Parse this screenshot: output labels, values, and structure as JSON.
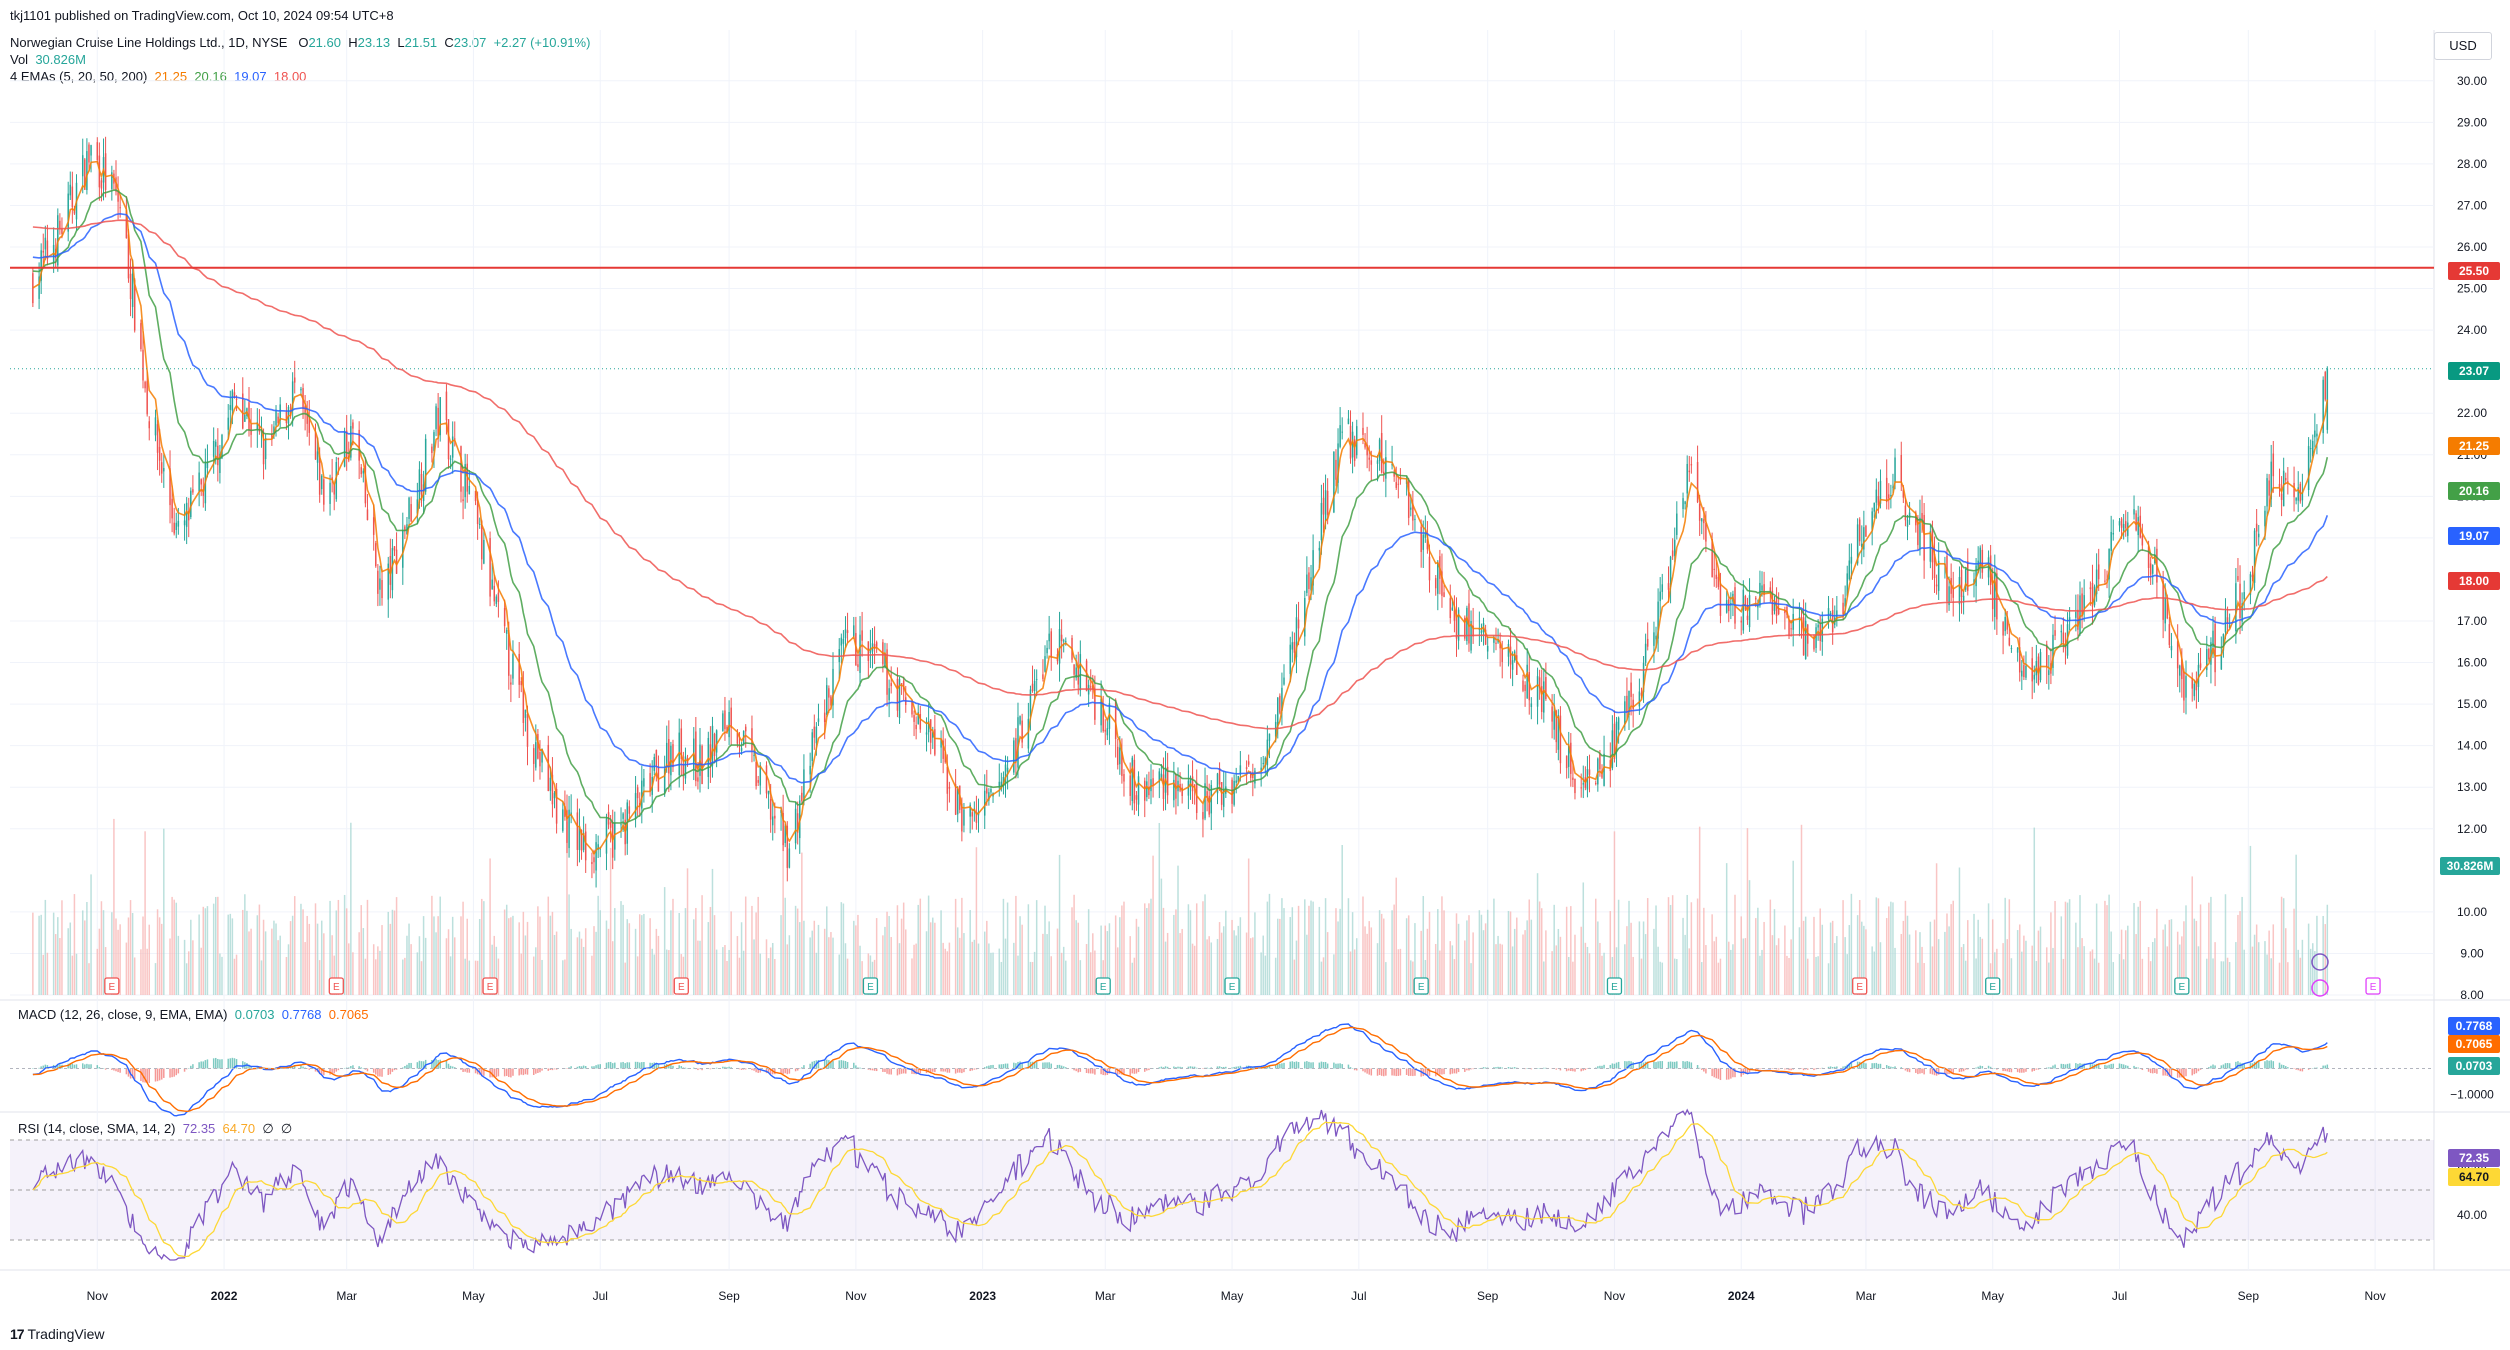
{
  "header": {
    "published": "tkj1101 published on TradingView.com, Oct 10, 2024 09:54 UTC+8",
    "symbol": "Norwegian Cruise Line Holdings Ltd., 1D, NYSE",
    "ohlc": {
      "o_label": "O",
      "o": "21.60",
      "h_label": "H",
      "h": "23.13",
      "l_label": "L",
      "l": "21.51",
      "c_label": "C",
      "c": "23.07",
      "chg": "+2.27 (+10.91%)"
    },
    "vol_label": "Vol",
    "vol_value": "30.826M",
    "ema_label": "4 EMAs (5, 20, 50, 200)",
    "ema_values": [
      "21.25",
      "20.16",
      "19.07",
      "18.00"
    ],
    "currency": "USD"
  },
  "colors": {
    "up": "#26a69a",
    "down": "#ef5350",
    "ema5": "#f57c00",
    "ema20": "#43a047",
    "ema50": "#2962ff",
    "ema200": "#ef5350",
    "hline": "#e53935",
    "macd": "#2962ff",
    "signal": "#ff6d00",
    "rsi": "#7e57c2",
    "rsi_ma": "#fdd835"
  },
  "price_axis": {
    "ticks": [
      "30.00",
      "29.00",
      "28.00",
      "27.00",
      "26.00",
      "25.00",
      "24.00",
      "22.00",
      "21.00",
      "20.00",
      "19.00",
      "17.00",
      "16.00",
      "15.00",
      "14.00",
      "13.00",
      "12.00",
      "10.00",
      "9.00",
      "8.00"
    ]
  },
  "time_axis": {
    "labels": [
      "Nov",
      "2022",
      "Mar",
      "May",
      "Jul",
      "Sep",
      "Nov",
      "2023",
      "Mar",
      "May",
      "Jul",
      "Sep",
      "Nov",
      "2024",
      "Mar",
      "May",
      "Jul",
      "Sep",
      "Nov"
    ]
  },
  "price_tags": {
    "resistance": "25.50",
    "last": "23.07",
    "ema5": "21.25",
    "ema20": "20.16",
    "ema50": "19.07",
    "ema200": "18.00",
    "volume": "30.826M"
  },
  "macd": {
    "label": "MACD (12, 26, close, 9, EMA, EMA)",
    "values": [
      "0.0703",
      "0.7768",
      "0.7065"
    ],
    "axis_label": "−1.0000"
  },
  "rsi": {
    "label": "RSI (14, close, SMA, 14, 2)",
    "values": [
      "72.35",
      "64.70",
      "∅",
      "∅"
    ],
    "axis_labels": [
      "60.00",
      "40.00"
    ]
  },
  "footer": {
    "brand": "TradingView"
  },
  "earnings_marker": "E",
  "chart_data": {
    "type": "candlestick",
    "title": "Norwegian Cruise Line Holdings Ltd., 1D, NYSE",
    "ylim": [
      8,
      30.5
    ],
    "series": [
      {
        "name": "Close (approx. weekly)",
        "dates": [
          "2021-10-01",
          "2021-10-15",
          "2021-10-29",
          "2021-11-12",
          "2021-11-26",
          "2021-12-10",
          "2021-12-24",
          "2022-01-07",
          "2022-01-21",
          "2022-02-04",
          "2022-02-18",
          "2022-03-04",
          "2022-03-18",
          "2022-04-01",
          "2022-04-15",
          "2022-04-29",
          "2022-05-13",
          "2022-05-27",
          "2022-06-10",
          "2022-06-24",
          "2022-07-08",
          "2022-07-22",
          "2022-08-05",
          "2022-08-19",
          "2022-09-02",
          "2022-09-16",
          "2022-09-30",
          "2022-10-14",
          "2022-10-28",
          "2022-11-11",
          "2022-11-25",
          "2022-12-09",
          "2022-12-23",
          "2023-01-06",
          "2023-01-20",
          "2023-02-03",
          "2023-02-17",
          "2023-03-03",
          "2023-03-17",
          "2023-03-31",
          "2023-04-14",
          "2023-04-28",
          "2023-05-12",
          "2023-05-26",
          "2023-06-09",
          "2023-06-23",
          "2023-07-07",
          "2023-07-21",
          "2023-08-04",
          "2023-08-18",
          "2023-09-01",
          "2023-09-15",
          "2023-09-29",
          "2023-10-13",
          "2023-10-27",
          "2023-11-10",
          "2023-11-24",
          "2023-12-08",
          "2023-12-22",
          "2024-01-05",
          "2024-01-19",
          "2024-02-02",
          "2024-02-16",
          "2024-03-01",
          "2024-03-15",
          "2024-03-29",
          "2024-04-12",
          "2024-04-26",
          "2024-05-10",
          "2024-05-24",
          "2024-06-07",
          "2024-06-21",
          "2024-07-05",
          "2024-07-19",
          "2024-08-02",
          "2024-08-16",
          "2024-08-30",
          "2024-09-13",
          "2024-09-27",
          "2024-10-09"
        ],
        "values": [
          25.2,
          26.5,
          28.3,
          27.0,
          22.0,
          19.0,
          20.5,
          22.5,
          21.0,
          22.6,
          20.0,
          21.5,
          17.5,
          19.8,
          22.0,
          20.0,
          17.0,
          14.5,
          12.5,
          11.5,
          11.8,
          12.8,
          14.0,
          13.5,
          14.8,
          13.0,
          11.5,
          14.5,
          16.5,
          16.0,
          15.0,
          14.0,
          12.2,
          12.6,
          14.5,
          16.5,
          15.8,
          14.5,
          12.8,
          13.3,
          12.5,
          13.0,
          13.5,
          15.5,
          18.5,
          21.5,
          21.0,
          20.5,
          18.5,
          17.0,
          16.5,
          16.0,
          15.0,
          13.2,
          13.5,
          15.0,
          17.5,
          20.8,
          17.0,
          17.5,
          17.3,
          16.5,
          17.2,
          19.5,
          20.5,
          19.0,
          17.5,
          18.5,
          16.5,
          15.8,
          17.0,
          18.0,
          19.5,
          18.0,
          15.2,
          16.3,
          17.8,
          20.5,
          20.0,
          23.07
        ]
      },
      {
        "name": "EMA 5",
        "last": 21.25
      },
      {
        "name": "EMA 20",
        "last": 20.16
      },
      {
        "name": "EMA 50",
        "last": 19.07
      },
      {
        "name": "EMA 200",
        "last": 18.0
      }
    ],
    "hline": 25.5,
    "earnings": [
      "2021-11-08",
      "2022-02-24",
      "2022-05-09",
      "2022-08-09",
      "2022-11-08",
      "2023-02-28",
      "2023-05-01",
      "2023-07-31",
      "2023-11-01",
      "2024-02-27",
      "2024-05-01",
      "2024-07-31",
      "2024-10-31"
    ],
    "xlabel": "",
    "ylabel": ""
  }
}
